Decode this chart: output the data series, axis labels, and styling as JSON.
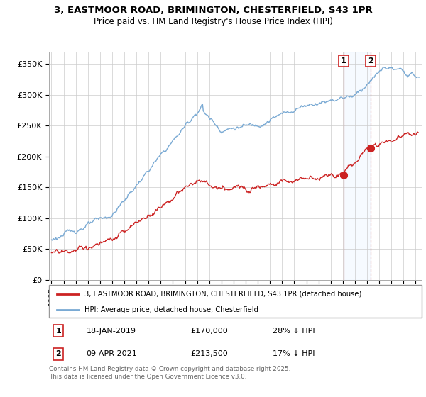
{
  "title_line1": "3, EASTMOOR ROAD, BRIMINGTON, CHESTERFIELD, S43 1PR",
  "title_line2": "Price paid vs. HM Land Registry's House Price Index (HPI)",
  "ylabel_ticks": [
    "£0",
    "£50K",
    "£100K",
    "£150K",
    "£200K",
    "£250K",
    "£300K",
    "£350K"
  ],
  "ytick_values": [
    0,
    50000,
    100000,
    150000,
    200000,
    250000,
    300000,
    350000
  ],
  "ylim": [
    0,
    370000
  ],
  "xlim_start": 1994.8,
  "xlim_end": 2025.5,
  "hpi_color": "#7aaad4",
  "price_color": "#cc2222",
  "marker1_x": 2019.05,
  "marker1_y": 170000,
  "marker2_x": 2021.28,
  "marker2_y": 213500,
  "vline1_x": 2019.05,
  "vline2_x": 2021.28,
  "legend_label_price": "3, EASTMOOR ROAD, BRIMINGTON, CHESTERFIELD, S43 1PR (detached house)",
  "legend_label_hpi": "HPI: Average price, detached house, Chesterfield",
  "annotation1_num": "1",
  "annotation1_date": "18-JAN-2019",
  "annotation1_price": "£170,000",
  "annotation1_hpi": "28% ↓ HPI",
  "annotation2_num": "2",
  "annotation2_date": "09-APR-2021",
  "annotation2_price": "£213,500",
  "annotation2_hpi": "17% ↓ HPI",
  "footnote": "Contains HM Land Registry data © Crown copyright and database right 2025.\nThis data is licensed under the Open Government Licence v3.0.",
  "background_color": "#ffffff",
  "grid_color": "#cccccc",
  "span_color": "#ddeeff",
  "vline_color": "#cc2222"
}
